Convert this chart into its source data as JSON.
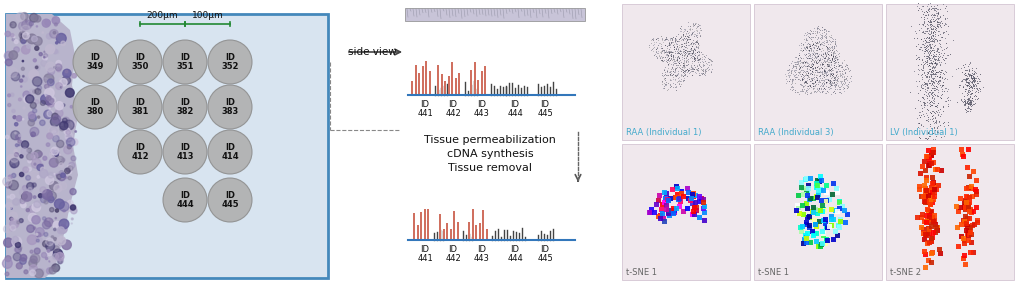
{
  "bg_color": "#ffffff",
  "left_panel_border_color": "#4488bb",
  "left_panel_bg": "#d8e4f0",
  "circle_color": "#b0b0b0",
  "circle_edge": "#909090",
  "measure_200": "200μm",
  "measure_100": "100μm",
  "side_view_label": "side view",
  "process_text_lines": [
    "Tissue permeabilization",
    "cDNA synthesis",
    "Tissue removal"
  ],
  "bar_ids": [
    "ID\n441",
    "ID\n442",
    "ID\n443",
    "ID\n444",
    "ID\n445"
  ],
  "salmon_color": "#d07060",
  "dark_line_color": "#444444",
  "blue_line_color": "#3377bb",
  "green_bracket": "#228833",
  "panel_labels": [
    "RAA (Individual 1)",
    "RAA (Individual 3)",
    "LV (Individual 1)"
  ],
  "tsne_labels": [
    "t-SNE 1",
    "t-SNE 1",
    "t-SNE 2"
  ],
  "panel_label_color": "#44aacc",
  "tsne_label_color": "#666666",
  "panel_bg": "#f0e8ed"
}
